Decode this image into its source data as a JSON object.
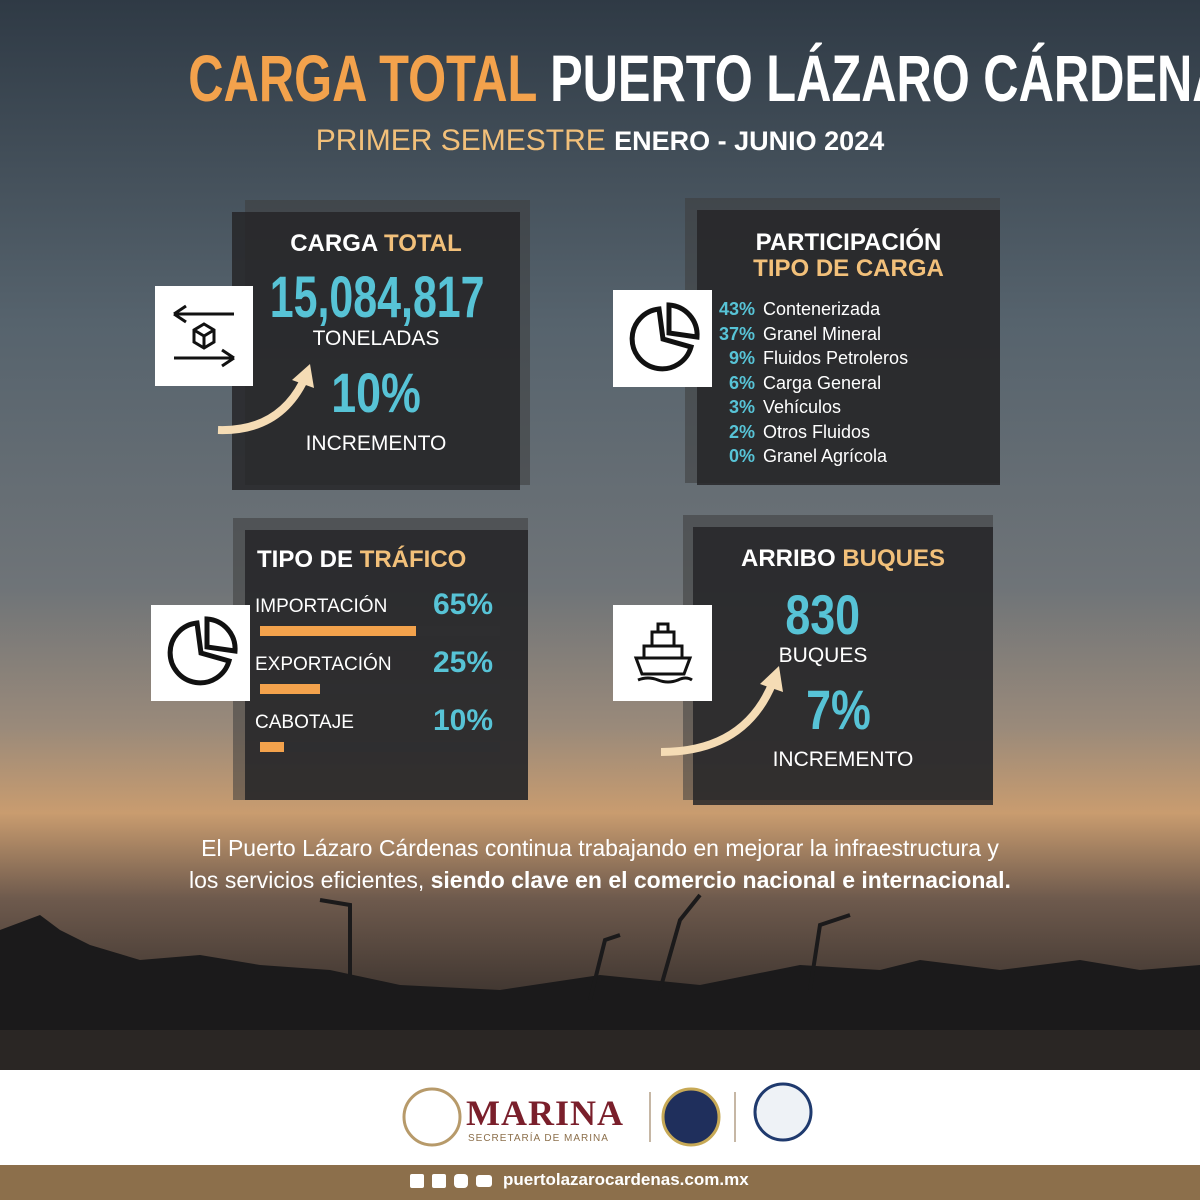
{
  "header": {
    "title_accent": "CARGA TOTAL",
    "title_main": "PUERTO LÁZARO CÁRDENAS",
    "subtitle_accent": "PRIMER SEMESTRE",
    "subtitle_main": "ENERO - JUNIO 2024"
  },
  "carga_total": {
    "title_main": "CARGA",
    "title_accent": "TOTAL",
    "value": "15,084,817",
    "unit": "TONELADAS",
    "increase": "10%",
    "increase_label": "INCREMENTO"
  },
  "participacion": {
    "title_main": "PARTICIPACIÓN",
    "title_accent": "TIPO DE CARGA",
    "items": [
      {
        "percent": "43%",
        "label": "Contenerizada"
      },
      {
        "percent": "37%",
        "label": "Granel Mineral"
      },
      {
        "percent": "9%",
        "label": "Fluidos Petroleros"
      },
      {
        "percent": "6%",
        "label": "Carga General"
      },
      {
        "percent": "3%",
        "label": "Vehículos"
      },
      {
        "percent": "2%",
        "label": "Otros Fluidos"
      },
      {
        "percent": "0%",
        "label": "Granel Agrícola"
      }
    ]
  },
  "trafico": {
    "title_main": "TIPO DE",
    "title_accent": "TRÁFICO",
    "items": [
      {
        "label": "IMPORTACIÓN",
        "value": 65,
        "value_label": "65%"
      },
      {
        "label": "EXPORTACIÓN",
        "value": 25,
        "value_label": "25%"
      },
      {
        "label": "CABOTAJE",
        "value": 10,
        "value_label": "10%"
      }
    ]
  },
  "buques": {
    "title_main": "ARRIBO",
    "title_accent": "BUQUES",
    "value": "830",
    "unit": "BUQUES",
    "increase": "7%",
    "increase_label": "INCREMENTO"
  },
  "footer": {
    "line1": "El Puerto Lázaro Cárdenas continua trabajando en mejorar la infraestructura y",
    "line2": "los servicios eficientes,",
    "line2_bold": "siendo clave en el comercio nacional e internacional.",
    "marina": "MARINA",
    "secretaria": "SECRETARÍA DE MARINA",
    "website": "puertolazarocardenas.com.mx"
  }
}
